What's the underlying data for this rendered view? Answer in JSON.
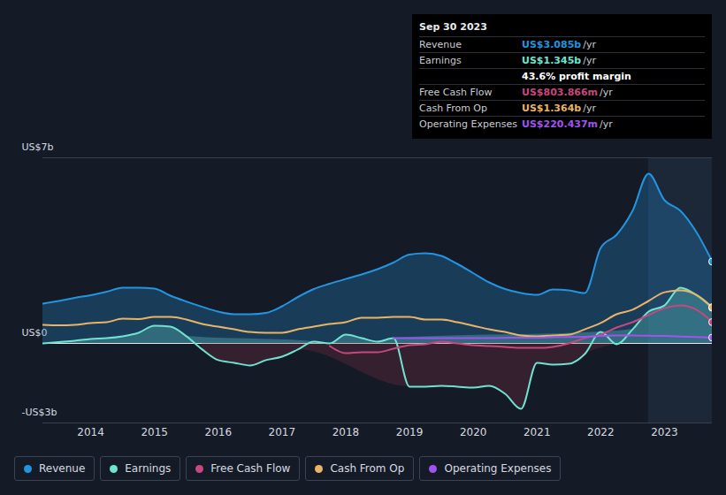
{
  "chart_data": {
    "type": "line",
    "x": [
      2013.25,
      2013.5,
      2013.75,
      2014,
      2014.25,
      2014.5,
      2014.75,
      2015,
      2015.25,
      2015.5,
      2015.75,
      2016,
      2016.25,
      2016.5,
      2016.75,
      2017,
      2017.25,
      2017.5,
      2017.75,
      2018,
      2018.25,
      2018.5,
      2018.75,
      2019,
      2019.25,
      2019.5,
      2019.75,
      2020,
      2020.25,
      2020.5,
      2020.75,
      2021,
      2021.25,
      2021.5,
      2021.75,
      2022,
      2022.25,
      2022.5,
      2022.75,
      2023,
      2023.25,
      2023.5,
      2023.75
    ],
    "series": [
      {
        "name": "Revenue",
        "color": "#2394df",
        "type": "area",
        "values": [
          1.5,
          1.6,
          1.72,
          1.82,
          1.95,
          2.1,
          2.1,
          2.07,
          1.8,
          1.58,
          1.38,
          1.2,
          1.1,
          1.1,
          1.15,
          1.4,
          1.75,
          2.05,
          2.25,
          2.43,
          2.6,
          2.8,
          3.05,
          3.35,
          3.4,
          3.3,
          3.0,
          2.65,
          2.3,
          2.05,
          1.9,
          1.83,
          2.03,
          2.0,
          1.9,
          3.6,
          4.1,
          5.0,
          6.4,
          5.4,
          5.0,
          4.2,
          3.085
        ]
      },
      {
        "name": "Earnings",
        "color": "#6fe3cf",
        "type": "area",
        "values": [
          0.0,
          0.05,
          0.1,
          0.17,
          0.2,
          0.27,
          0.4,
          0.67,
          0.63,
          0.27,
          -0.23,
          -0.63,
          -0.73,
          -0.83,
          -0.63,
          -0.5,
          -0.23,
          0.07,
          0.0,
          0.33,
          0.2,
          0.07,
          0.2,
          -1.63,
          -1.63,
          -1.6,
          -1.63,
          -1.67,
          -1.6,
          -1.9,
          -2.47,
          -0.73,
          -0.8,
          -0.77,
          -0.4,
          0.43,
          -0.03,
          0.53,
          1.2,
          1.43,
          2.1,
          1.83,
          1.345
        ]
      },
      {
        "name": "Free Cash Flow",
        "color": "#c7477f",
        "type": "line",
        "values": [
          null,
          null,
          null,
          null,
          null,
          null,
          null,
          null,
          null,
          null,
          null,
          null,
          null,
          null,
          null,
          null,
          null,
          null,
          -0.1,
          -0.37,
          -0.33,
          -0.33,
          -0.2,
          -0.07,
          -0.03,
          0.07,
          0.0,
          -0.07,
          -0.1,
          -0.13,
          -0.17,
          -0.17,
          -0.13,
          0.0,
          0.2,
          0.33,
          0.6,
          0.8,
          1.07,
          1.33,
          1.43,
          1.27,
          0.804
        ]
      },
      {
        "name": "Cash From Op",
        "color": "#e9b467",
        "type": "line",
        "values": [
          0.7,
          0.68,
          0.7,
          0.77,
          0.8,
          0.93,
          0.92,
          1.0,
          1.0,
          0.9,
          0.73,
          0.63,
          0.53,
          0.43,
          0.4,
          0.4,
          0.53,
          0.63,
          0.73,
          0.8,
          0.97,
          0.97,
          1.0,
          1.0,
          0.9,
          0.9,
          0.8,
          0.67,
          0.53,
          0.43,
          0.3,
          0.27,
          0.3,
          0.33,
          0.53,
          0.77,
          1.1,
          1.27,
          1.6,
          1.93,
          2.0,
          1.83,
          1.364
        ]
      },
      {
        "name": "Operating Expenses",
        "color": "#a053f0",
        "type": "line",
        "values": [
          null,
          null,
          null,
          null,
          null,
          null,
          null,
          null,
          null,
          null,
          null,
          null,
          null,
          null,
          null,
          null,
          null,
          null,
          null,
          null,
          null,
          null,
          0.2,
          0.2,
          0.2,
          0.2,
          0.2,
          0.2,
          0.2,
          0.21,
          0.22,
          0.22,
          0.23,
          0.24,
          0.25,
          0.28,
          0.3,
          0.3,
          0.29,
          0.28,
          0.26,
          0.24,
          0.22
        ]
      }
    ],
    "xlim": [
      2013.25,
      2023.75
    ],
    "xticks": [
      2014,
      2015,
      2016,
      2017,
      2018,
      2019,
      2020,
      2021,
      2022,
      2023
    ],
    "ylim": [
      -3,
      7
    ],
    "yticks": [
      {
        "value": -3,
        "label": "-US$3b"
      },
      {
        "value": 0,
        "label": "US$0"
      },
      {
        "value": 7,
        "label": "US$7b"
      }
    ],
    "grid": true,
    "legend": "bottom",
    "annotation": {
      "date": "Sep 30 2023",
      "rows": [
        {
          "label": "Revenue",
          "value": "US$3.085b",
          "unit": "/yr"
        },
        {
          "label": "Earnings",
          "value": "US$1.345b",
          "unit": "/yr"
        },
        {
          "label": "Free Cash Flow",
          "value": "US$803.866m",
          "unit": "/yr"
        },
        {
          "label": "Cash From Op",
          "value": "US$1.364b",
          "unit": "/yr"
        },
        {
          "label": "Operating Expenses",
          "value": "US$220.437m",
          "unit": "/yr"
        }
      ],
      "margin_note": "43.6% profit margin"
    }
  }
}
